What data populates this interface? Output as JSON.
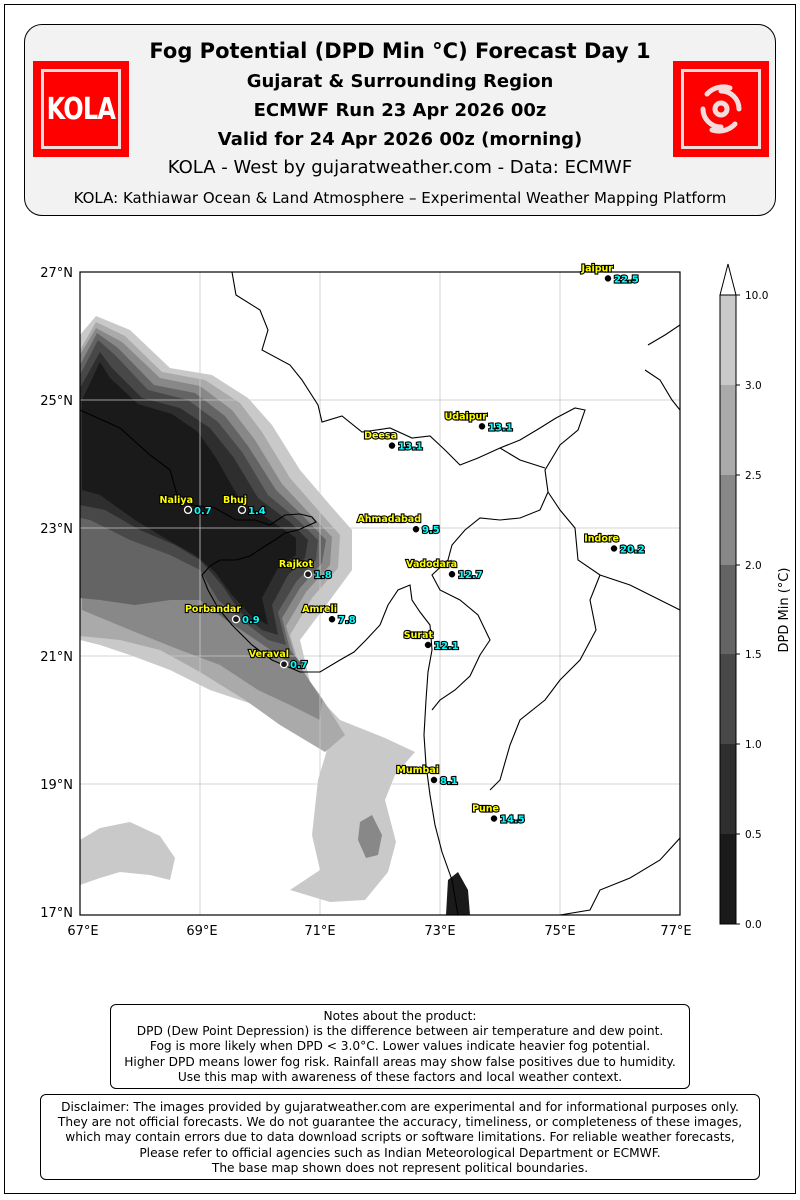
{
  "header": {
    "title": "Fog Potential (DPD Min °C) Forecast Day 1",
    "region": "Gujarat & Surrounding Region",
    "run": "ECMWF Run 23 Apr 2026 00z",
    "valid": "Valid for 24 Apr 2026 00z (morning)",
    "source": "KOLA - West by gujaratweather.com  -  Data: ECMWF",
    "platform": "KOLA: Kathiawar Ocean & Land Atmosphere – Experimental Weather Mapping Platform",
    "logo_left_text": "KOLA",
    "logo_right_icon": "cyclone-icon",
    "logo_color": "#ff0000"
  },
  "map": {
    "lon_range": [
      67,
      77
    ],
    "lat_range": [
      17,
      27
    ],
    "lon_ticks": [
      "67°E",
      "69°E",
      "71°E",
      "73°E",
      "75°E",
      "77°E"
    ],
    "lat_ticks": [
      "17°N",
      "19°N",
      "21°N",
      "23°N",
      "25°N",
      "27°N"
    ],
    "grid": true,
    "cities": [
      {
        "name": "Jaipur",
        "value": "22.5",
        "lon": 75.8,
        "lat": 26.9
      },
      {
        "name": "Udaipur",
        "value": "13.1",
        "lon": 73.7,
        "lat": 24.6
      },
      {
        "name": "Deesa",
        "value": "13.1",
        "lon": 72.2,
        "lat": 24.3
      },
      {
        "name": "Naliya",
        "value": "0.7",
        "lon": 68.8,
        "lat": 23.3
      },
      {
        "name": "Bhuj",
        "value": "1.4",
        "lon": 69.7,
        "lat": 23.3
      },
      {
        "name": "Ahmadabad",
        "value": "9.5",
        "lon": 72.6,
        "lat": 23.0
      },
      {
        "name": "Indore",
        "value": "20.2",
        "lon": 75.9,
        "lat": 22.7
      },
      {
        "name": "Rajkot",
        "value": "1.8",
        "lon": 70.8,
        "lat": 22.3
      },
      {
        "name": "Vadodara",
        "value": "12.7",
        "lon": 73.2,
        "lat": 22.3
      },
      {
        "name": "Porbandar",
        "value": "0.9",
        "lon": 69.6,
        "lat": 21.6
      },
      {
        "name": "Amreli",
        "value": "7.8",
        "lon": 71.2,
        "lat": 21.6
      },
      {
        "name": "Surat",
        "value": "12.1",
        "lon": 72.8,
        "lat": 21.2
      },
      {
        "name": "Veraval",
        "value": "0.7",
        "lon": 70.4,
        "lat": 20.9
      },
      {
        "name": "Mumbai",
        "value": "8.1",
        "lon": 72.9,
        "lat": 19.1
      },
      {
        "name": "Pune",
        "value": "14.5",
        "lon": 73.9,
        "lat": 18.5
      }
    ]
  },
  "colorbar": {
    "label": "DPD Min (°C)",
    "levels": [
      "0.0",
      "0.5",
      "1.0",
      "1.5",
      "2.0",
      "2.5",
      "3.0",
      "10.0"
    ],
    "colors": [
      "#1a1a1a",
      "#2e2e2e",
      "#484848",
      "#646464",
      "#888888",
      "#aaaaaa",
      "#c9c9c9",
      "#ffffff"
    ]
  },
  "notes": {
    "lines": [
      "Notes about the product:",
      "DPD (Dew Point Depression) is the difference between air temperature and dew point.",
      "Fog is more likely when DPD < 3.0°C. Lower values indicate heavier fog potential.",
      "Higher DPD means lower fog risk. Rainfall areas may show false positives due to humidity.",
      "Use this map with awareness of these factors and local weather context."
    ]
  },
  "disclaimer": {
    "lines": [
      "Disclaimer: The images provided by gujaratweather.com are experimental and for informational purposes only.",
      "They are not official forecasts. We do not guarantee the accuracy, timeliness, or completeness of these images,",
      "which may contain errors due to data download scripts or software limitations. For reliable weather forecasts,",
      "Please refer to official agencies such as Indian Meteorological Department or ECMWF.",
      "The base map shown does not represent political boundaries."
    ]
  }
}
